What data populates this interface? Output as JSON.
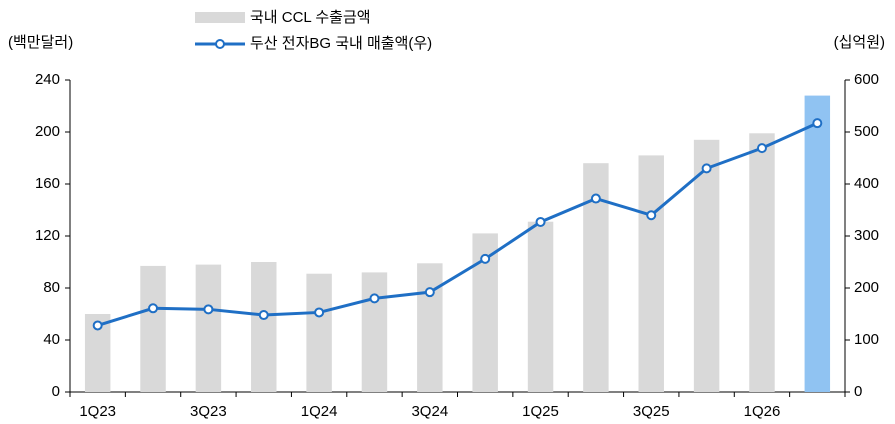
{
  "chart_data": {
    "type": "bar-line",
    "y_label": "(백만달러)",
    "y2_label": "(십억원)",
    "categories": [
      "1Q23",
      null,
      "3Q23",
      null,
      "1Q24",
      null,
      "3Q24",
      null,
      "1Q25",
      null,
      "3Q25",
      null,
      "1Q26",
      null
    ],
    "series": [
      {
        "name": "국내 CCL 수출금액",
        "type": "bar",
        "color": "#d9d9d9",
        "highlight_color": "#90c3f2",
        "highlight": [
          13
        ],
        "values": [
          60,
          97,
          98,
          100,
          91,
          92,
          99,
          122,
          131,
          176,
          182,
          194,
          199,
          228
        ]
      },
      {
        "name": "두산 전자BG 국내 매출액(우)",
        "type": "line",
        "axis": "y2",
        "color": "#1f6fc5",
        "values": [
          128,
          161,
          159,
          148,
          153,
          180,
          192,
          256,
          327,
          372,
          340,
          430,
          469,
          517
        ]
      }
    ],
    "ylim": [
      0,
      240
    ],
    "yticks": [
      0,
      40,
      80,
      120,
      160,
      200,
      240
    ],
    "y2lim": [
      0,
      600
    ],
    "y2ticks": [
      0,
      100,
      200,
      300,
      400,
      500,
      600
    ]
  }
}
